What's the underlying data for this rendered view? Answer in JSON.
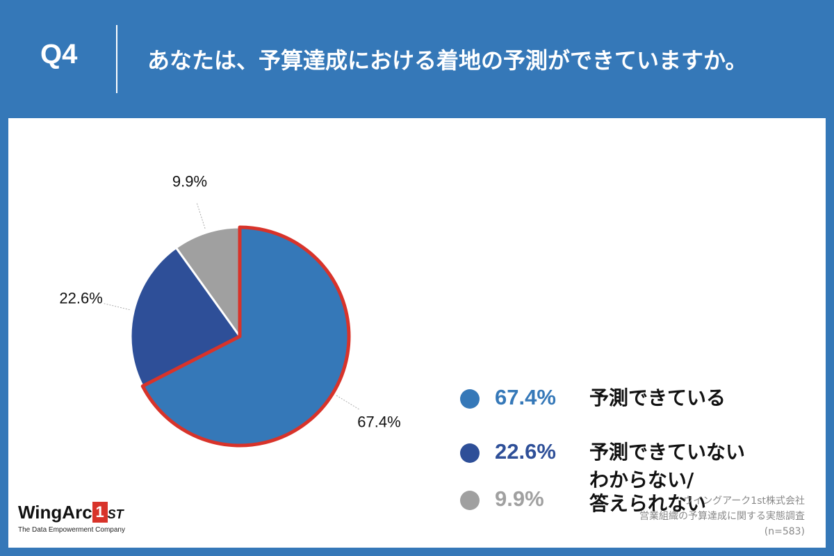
{
  "header": {
    "question_number": "Q4",
    "title": "あなたは、予算達成における着地の予測ができていますか。"
  },
  "colors": {
    "background": "#3578b8",
    "slice_primary": "#3578b8",
    "slice_secondary": "#2e4f98",
    "slice_tertiary": "#a0a0a0",
    "highlight_outline": "#d8332a"
  },
  "chart_data": {
    "type": "pie",
    "categories": [
      "予測できている",
      "予測できていない",
      "わからない/答えられない"
    ],
    "values": [
      67.4,
      22.6,
      9.9
    ],
    "value_labels": [
      "67.4%",
      "22.6%",
      "9.9%"
    ],
    "colors": [
      "#3578b8",
      "#2e4f98",
      "#a0a0a0"
    ],
    "highlighted_slice": "予測できている",
    "legend_placement": "right"
  },
  "legend": {
    "items": [
      {
        "value": "67.4%",
        "label_lines": [
          "予測できている"
        ],
        "color": "#3578b8"
      },
      {
        "value": "22.6%",
        "label_lines": [
          "予測できていない"
        ],
        "color": "#2e4f98"
      },
      {
        "value": "9.9%",
        "label_lines": [
          "わからない/",
          "答えられない"
        ],
        "color": "#a0a0a0"
      }
    ]
  },
  "logo": {
    "brand": "WingArc",
    "badge_digit": "1",
    "badge_suffix": "ST",
    "tagline": "The Data Empowerment Company"
  },
  "source": {
    "company": "ウイングアーク1st株式会社",
    "survey": "営業組織の予算達成に関する実態調査",
    "sample": "(n=583)"
  }
}
